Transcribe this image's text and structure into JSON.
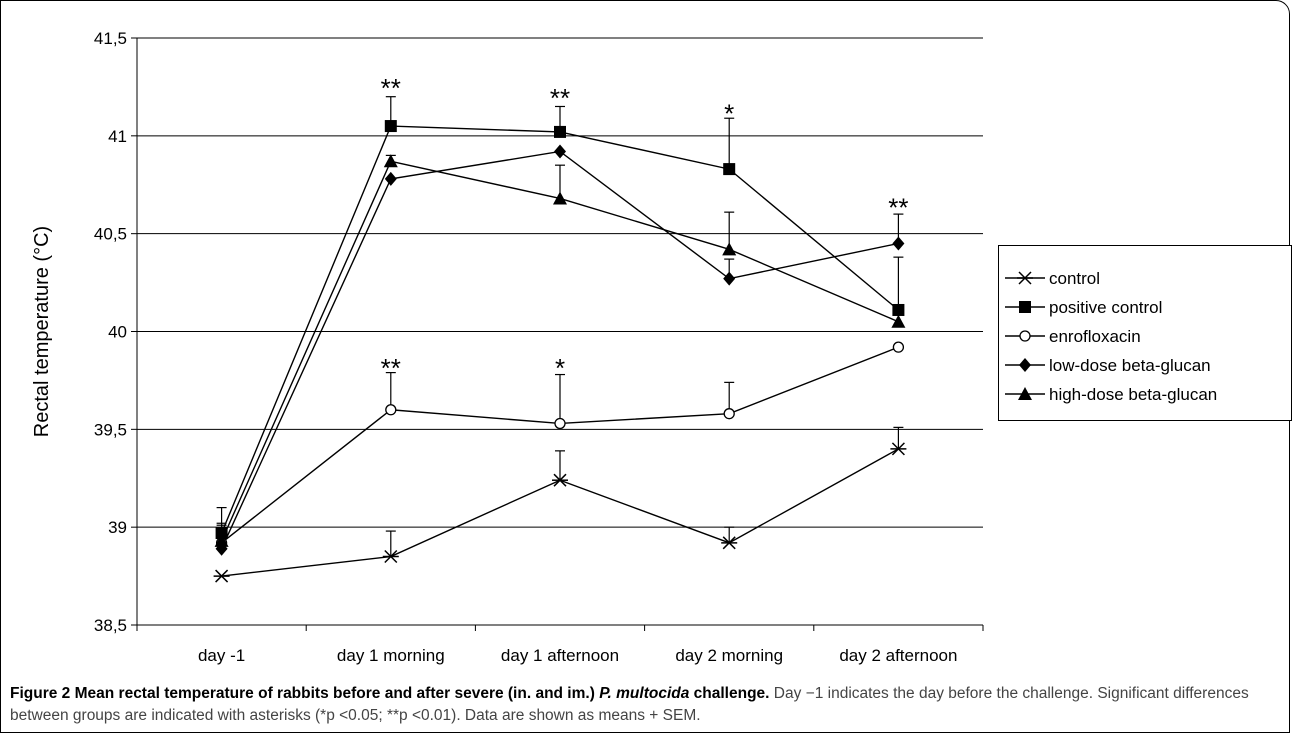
{
  "chart_data": {
    "type": "line",
    "title": "",
    "xlabel": "",
    "ylabel": "Rectal temperature (°C)",
    "ylim": [
      38.5,
      41.5
    ],
    "yticks": [
      "38,5",
      "39",
      "39,5",
      "40",
      "40,5",
      "41",
      "41,5"
    ],
    "ytick_values": [
      38.5,
      39,
      39.5,
      40,
      40.5,
      41,
      41.5
    ],
    "grid": "horizontal",
    "legend_position": "right",
    "categories": [
      "day -1",
      "day 1 morning",
      "day 1 afternoon",
      "day 2 morning",
      "day 2 afternoon"
    ],
    "series": [
      {
        "name": "control",
        "marker": "asterisk",
        "values": [
          38.75,
          38.85,
          39.24,
          38.92,
          39.4
        ],
        "sem": [
          0.0,
          0.13,
          0.15,
          0.08,
          0.11
        ]
      },
      {
        "name": "positive control",
        "marker": "filled-square",
        "values": [
          38.97,
          41.05,
          41.02,
          40.83,
          40.11
        ],
        "sem": [
          0.13,
          0.15,
          0.13,
          0.26,
          0.27
        ]
      },
      {
        "name": "enrofloxacin",
        "marker": "open-circle",
        "values": [
          38.92,
          39.6,
          39.53,
          39.58,
          39.92
        ],
        "sem": [
          0.1,
          0.19,
          0.25,
          0.16,
          0.0
        ]
      },
      {
        "name": "low-dose beta-glucan",
        "marker": "filled-diamond",
        "values": [
          38.89,
          40.78,
          40.92,
          40.27,
          40.45
        ],
        "sem": [
          0.1,
          0.0,
          0.0,
          0.1,
          0.15
        ]
      },
      {
        "name": "high-dose beta-glucan",
        "marker": "filled-triangle",
        "values": [
          38.93,
          40.87,
          40.68,
          40.42,
          40.05
        ],
        "sem": [
          0.08,
          0.03,
          0.17,
          0.19,
          0.0
        ]
      }
    ],
    "annotations": [
      {
        "text": "**",
        "category": "day 1 morning",
        "y": 41.28
      },
      {
        "text": "**",
        "category": "day 1 afternoon",
        "y": 41.23
      },
      {
        "text": "*",
        "category": "day 2 morning",
        "y": 41.15
      },
      {
        "text": "**",
        "category": "day 2 afternoon",
        "y": 40.67
      },
      {
        "text": "**",
        "category": "day 1 morning",
        "y": 39.85
      },
      {
        "text": "*",
        "category": "day 1 afternoon",
        "y": 39.85
      }
    ],
    "colors": {
      "line": "#000000",
      "grid": "#000000"
    }
  },
  "caption": {
    "label": "Figure 2",
    "title_before": "Mean rectal temperature of rabbits before and after severe (in. and im.)",
    "title_italic": "P. multocida",
    "title_after": "challenge.",
    "body": "Day −1 indicates the day before the challenge. Significant differences between groups are indicated with asterisks (*p <0.05; **p <0.01). Data are shown as means + SEM."
  }
}
